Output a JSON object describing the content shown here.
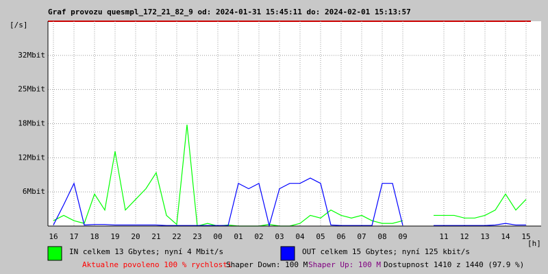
{
  "chart_data": {
    "type": "line",
    "title": "Graf provozu quesmpl_172_21_82_9 od: 2024-01-31 15:45:11 do: 2024-02-01 15:13:57",
    "y_label": "[/s]",
    "x_label": "[h]",
    "categories": [
      "16",
      null,
      "17",
      null,
      "18",
      null,
      "19",
      null,
      "20",
      null,
      "21",
      null,
      "22",
      null,
      "23",
      null,
      "00",
      null,
      "01",
      null,
      "02",
      null,
      "03",
      null,
      "04",
      null,
      "05",
      null,
      "06",
      null,
      "07",
      null,
      "08",
      null,
      "09",
      null,
      null,
      null,
      "11",
      null,
      "12",
      null,
      "13",
      null,
      "14",
      null,
      "15"
    ],
    "ylim": [
      0,
      38.4
    ],
    "yticks": [
      {
        "value": 6.4,
        "label": "6Mbit"
      },
      {
        "value": 12.8,
        "label": "12Mbit"
      },
      {
        "value": 19.2,
        "label": "18Mbit"
      },
      {
        "value": 25.6,
        "label": "25Mbit"
      },
      {
        "value": 32,
        "label": "32Mbit"
      }
    ],
    "grid": true,
    "series": [
      {
        "name": "IN celkem 13 Gbytes; nyní 4 Mbit/s",
        "color": "#00ff00",
        "values": [
          1,
          2,
          1,
          0.5,
          6,
          3,
          14,
          3,
          5,
          7,
          10,
          2,
          0.3,
          19,
          0,
          0.5,
          0,
          0.2,
          0,
          0,
          0,
          0.3,
          0,
          0,
          0.5,
          2,
          1.5,
          3,
          2,
          1.5,
          2,
          1,
          0.5,
          0.5,
          1,
          null,
          null,
          2,
          2,
          2,
          1.5,
          1.5,
          2,
          3,
          6,
          3,
          5
        ]
      },
      {
        "name": "OUT celkem 15 Gbytes; nyní 125 kbit/s",
        "color": "#0000ff",
        "values": [
          0.2,
          4,
          8,
          0.2,
          0.3,
          0.3,
          0.2,
          0.2,
          0.2,
          0.2,
          0.2,
          0.1,
          0.1,
          0.1,
          0.1,
          0.1,
          0.1,
          0.1,
          8,
          7,
          8,
          0.1,
          7,
          8,
          8,
          9,
          8,
          0.2,
          0.1,
          0.1,
          0.1,
          0.1,
          8,
          8,
          0.1,
          null,
          null,
          0.1,
          0.1,
          0.1,
          0.1,
          0.1,
          0.1,
          0.2,
          0.5,
          0.2,
          0.2
        ]
      }
    ],
    "footer": [
      {
        "text": "Aktualne povoleno 100 % rychlosti",
        "color": "#ff0000"
      },
      {
        "text": "Shaper Down: 100 M",
        "color": "#000000"
      },
      {
        "text": "Shaper Up: 100 M",
        "color": "#800080"
      },
      {
        "text": "Dostupnost 1410 z 1440 (97.9 %)",
        "color": "#000000"
      }
    ]
  }
}
